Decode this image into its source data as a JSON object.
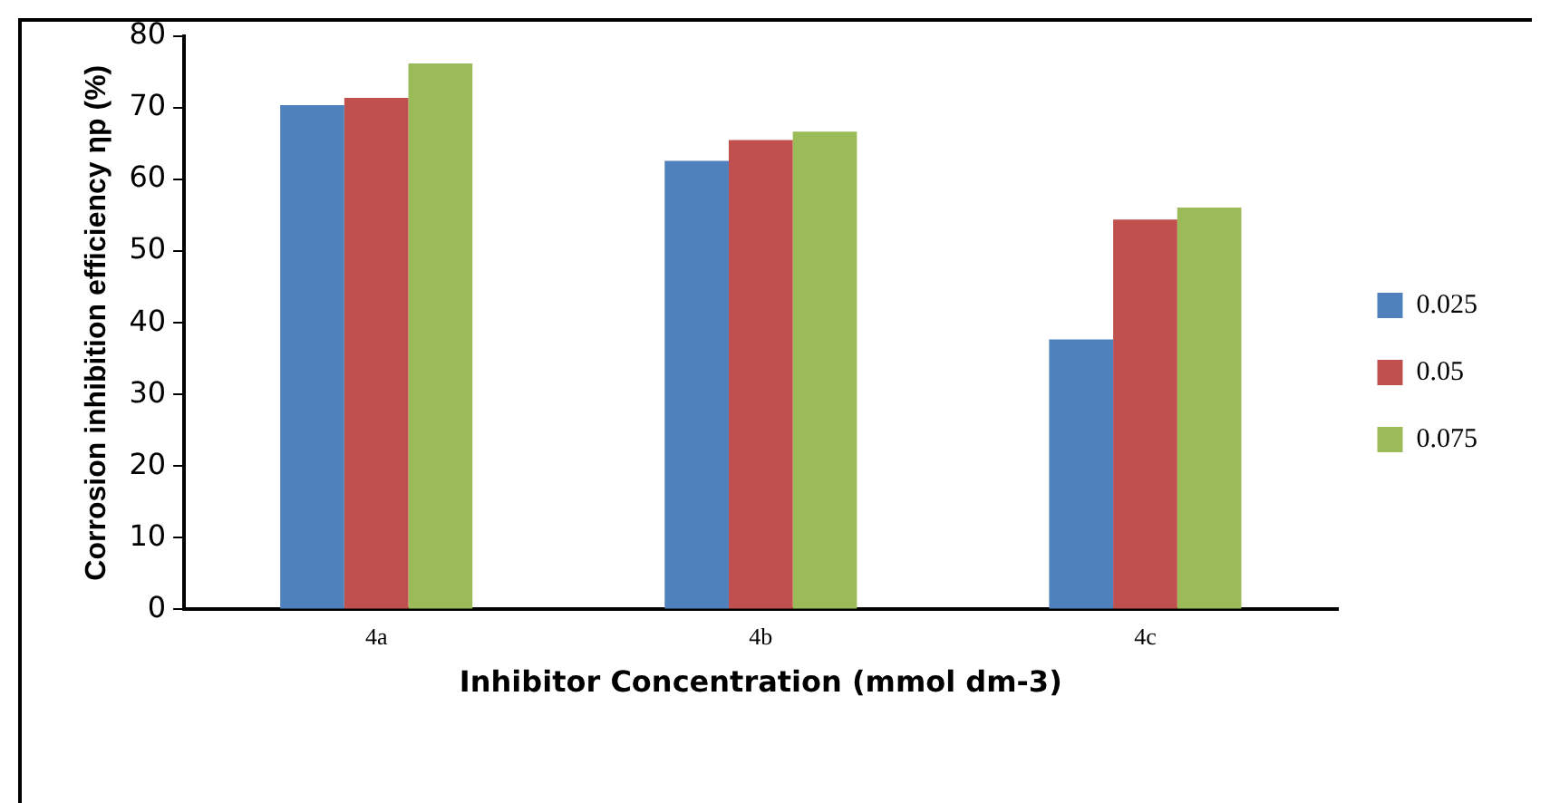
{
  "chart_data": {
    "type": "bar",
    "xlabel": "Inhibitor Concentration (mmol dm-3)",
    "ylabel": "Corrosion inhibition efficiency ηp (%)",
    "categories": [
      "4a",
      "4b",
      "4c"
    ],
    "series": [
      {
        "name": "0.025",
        "color": "#4f81bd",
        "values": [
          70.4,
          62.6,
          37.7
        ]
      },
      {
        "name": "0.05",
        "color": "#c0504d",
        "values": [
          71.4,
          65.5,
          54.4
        ]
      },
      {
        "name": "0.075",
        "color": "#9bbb59",
        "values": [
          76.2,
          66.7,
          56.1
        ]
      }
    ],
    "ylim": [
      0,
      80
    ],
    "yticks": [
      0,
      10,
      20,
      30,
      40,
      50,
      60,
      70,
      80
    ],
    "grid": false,
    "legend": "right"
  }
}
